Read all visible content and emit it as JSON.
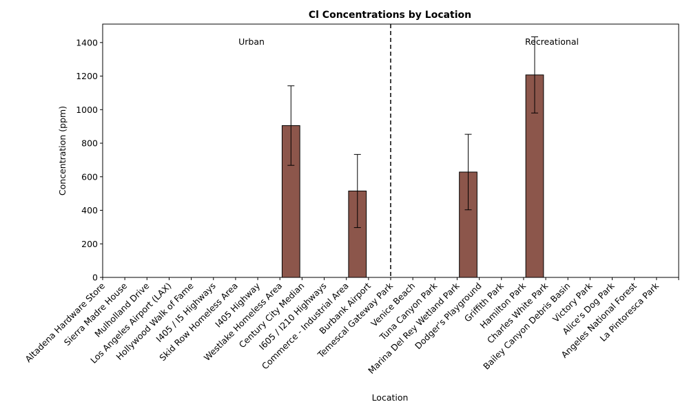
{
  "chart_data": {
    "type": "bar",
    "title": "Cl Concentrations by Location",
    "xlabel": "Location",
    "ylabel": "Concentration (ppm)",
    "ylim": [
      0,
      1510
    ],
    "yticks": [
      0,
      200,
      400,
      600,
      800,
      1000,
      1200,
      1400
    ],
    "grid": false,
    "bar_color": "#8c564b",
    "categories": [
      "Altadena Hardware Store",
      "Sierra Madre House",
      "Mulholland Drive",
      "Los Angeles Airport (LAX)",
      "Hollywood Walk of Fame",
      "I405 / I5 Highways",
      "Skid Row Homeless Area",
      "I405 Highway",
      "Westlake Homeless Area",
      "Century City Median",
      "I605 / I210 Highways",
      "Commerce - Industrial Area",
      "Burbank Airport",
      "Temescal Gateway Park",
      "Venice Beach",
      "Tuna Canyon Park",
      "Marina Del Rey Wetland Park",
      "Dodger's Playground",
      "Griffith Park",
      "Hamilton Park",
      "Charles White Park",
      "Bailey Canyon Debris Basin",
      "Victory Park",
      "Alice's Dog Park",
      "Angeles National Forest",
      "La Pintoresca Park"
    ],
    "values": [
      0,
      0,
      0,
      0,
      0,
      0,
      0,
      0,
      905,
      0,
      0,
      515,
      0,
      0,
      0,
      0,
      628,
      0,
      0,
      1207,
      0,
      0,
      0,
      0,
      0,
      0
    ],
    "errors": [
      0,
      0,
      0,
      0,
      0,
      0,
      0,
      0,
      237,
      0,
      0,
      218,
      0,
      0,
      0,
      0,
      225,
      0,
      0,
      227,
      0,
      0,
      0,
      0,
      0,
      0
    ],
    "divider_after_index": 12.5,
    "regions": [
      {
        "label": "Urban"
      },
      {
        "label": "Recreational"
      }
    ]
  }
}
